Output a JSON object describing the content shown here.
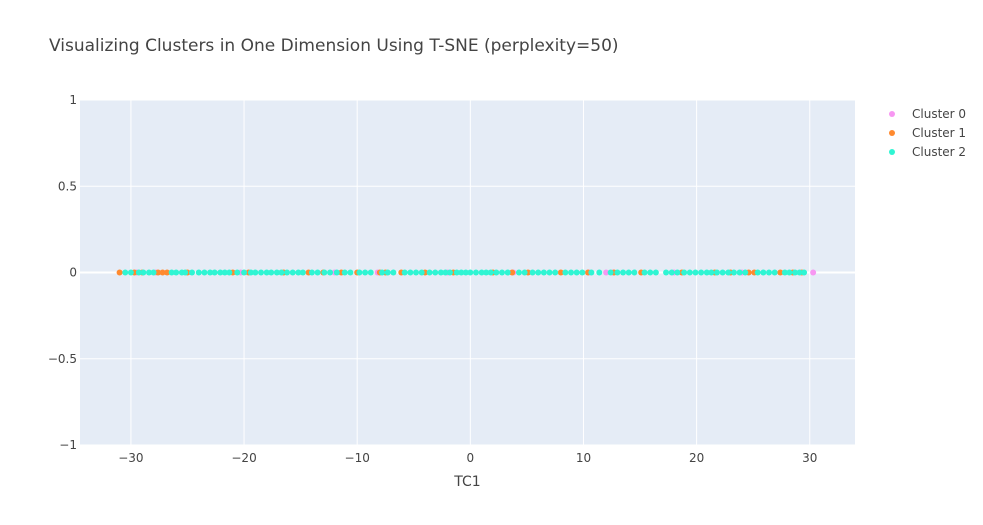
{
  "chart_data": {
    "type": "scatter",
    "title": "Visualizing Clusters in One Dimension Using T-SNE (perplexity=50)",
    "xlabel": "TC1",
    "ylabel": "",
    "xlim": [
      -34.5,
      34
    ],
    "ylim": [
      -1,
      1
    ],
    "xticks": [
      -30,
      -20,
      -10,
      0,
      10,
      20,
      30
    ],
    "xtick_labels": [
      "−30",
      "−20",
      "−10",
      "0",
      "10",
      "20",
      "30"
    ],
    "yticks": [
      -1,
      -0.5,
      0,
      0.5,
      1
    ],
    "ytick_labels": [
      "−1",
      "−0.5",
      "0",
      "0.5",
      "1"
    ],
    "grid": true,
    "legend_position": "top-right",
    "series": [
      {
        "name": "Cluster 0",
        "color": "#f797f2",
        "x": [
          -29.5,
          -27.8,
          -20.3,
          -12.0,
          -8.2,
          -2.0,
          3.8,
          10.5,
          12.0,
          12.6,
          18.0,
          24.0,
          30.3
        ],
        "y": [
          0,
          0,
          0,
          0,
          0,
          0,
          0,
          0,
          0,
          0,
          0,
          0,
          0
        ]
      },
      {
        "name": "Cluster 1",
        "color": "#ff8a2f",
        "x": [
          -31.0,
          -29.7,
          -29.0,
          -27.6,
          -27.2,
          -26.8,
          -25.0,
          -21.0,
          -19.6,
          -16.5,
          -14.3,
          -13.0,
          -11.4,
          -10.0,
          -8.0,
          -7.5,
          -6.1,
          -4.0,
          -1.5,
          2.0,
          3.7,
          5.1,
          8.0,
          10.4,
          12.7,
          15.1,
          18.7,
          21.6,
          23.0,
          24.6,
          25.1,
          27.4,
          28.5,
          29.3
        ],
        "y": [
          0,
          0,
          0,
          0,
          0,
          0,
          0,
          0,
          0,
          0,
          0,
          0,
          0,
          0,
          0,
          0,
          0,
          0,
          0,
          0,
          0,
          0,
          0,
          0,
          0,
          0,
          0,
          0,
          0,
          0,
          0,
          0,
          0,
          0
        ]
      },
      {
        "name": "Cluster 2",
        "color": "#2ff5d3",
        "x": [
          -30.5,
          -30.0,
          -29.3,
          -28.9,
          -28.4,
          -28.0,
          -26.4,
          -26.0,
          -25.5,
          -25.2,
          -24.6,
          -24.0,
          -23.5,
          -23.0,
          -22.6,
          -22.1,
          -21.7,
          -21.3,
          -20.6,
          -20.0,
          -19.4,
          -19.0,
          -18.5,
          -18.0,
          -17.6,
          -17.1,
          -16.7,
          -16.2,
          -15.7,
          -15.2,
          -14.8,
          -14.0,
          -13.5,
          -12.9,
          -12.4,
          -11.8,
          -11.1,
          -10.6,
          -9.8,
          -9.3,
          -8.8,
          -7.8,
          -7.3,
          -6.8,
          -5.8,
          -5.3,
          -4.8,
          -4.3,
          -3.6,
          -3.1,
          -2.6,
          -2.2,
          -1.8,
          -1.2,
          -0.8,
          -0.4,
          0.0,
          0.5,
          1.0,
          1.4,
          1.8,
          2.3,
          2.8,
          3.3,
          4.3,
          4.8,
          5.5,
          6.0,
          6.5,
          7.0,
          7.5,
          8.4,
          8.9,
          9.4,
          9.9,
          10.7,
          11.4,
          12.4,
          13.0,
          13.5,
          14.0,
          14.5,
          15.4,
          15.9,
          16.4,
          17.3,
          17.8,
          18.3,
          18.9,
          19.4,
          19.9,
          20.4,
          20.9,
          21.3,
          21.8,
          22.3,
          22.8,
          23.3,
          23.8,
          24.3,
          25.4,
          25.9,
          26.4,
          26.9,
          27.8,
          28.2,
          28.7,
          29.1,
          29.5
        ],
        "y": [
          0,
          0,
          0,
          0,
          0,
          0,
          0,
          0,
          0,
          0,
          0,
          0,
          0,
          0,
          0,
          0,
          0,
          0,
          0,
          0,
          0,
          0,
          0,
          0,
          0,
          0,
          0,
          0,
          0,
          0,
          0,
          0,
          0,
          0,
          0,
          0,
          0,
          0,
          0,
          0,
          0,
          0,
          0,
          0,
          0,
          0,
          0,
          0,
          0,
          0,
          0,
          0,
          0,
          0,
          0,
          0,
          0,
          0,
          0,
          0,
          0,
          0,
          0,
          0,
          0,
          0,
          0,
          0,
          0,
          0,
          0,
          0,
          0,
          0,
          0,
          0,
          0,
          0,
          0,
          0,
          0,
          0,
          0,
          0,
          0,
          0,
          0,
          0,
          0,
          0,
          0,
          0,
          0,
          0,
          0,
          0,
          0,
          0,
          0,
          0,
          0,
          0,
          0,
          0,
          0,
          0,
          0,
          0,
          0
        ]
      }
    ]
  }
}
